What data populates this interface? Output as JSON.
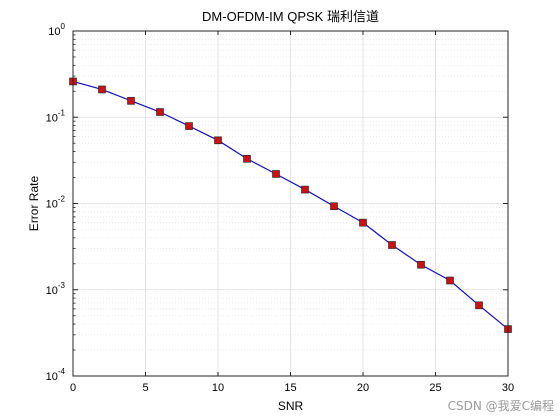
{
  "chart_data": {
    "type": "line",
    "title": "DM-OFDM-IM QPSK 瑞利信道",
    "xlabel": "SNR",
    "ylabel": "Error Rate",
    "xlim": [
      0,
      30
    ],
    "ylim": [
      0.0001,
      1
    ],
    "yscale": "log",
    "grid": true,
    "x_ticks": [
      0,
      5,
      10,
      15,
      20,
      25,
      30
    ],
    "y_ticks": [
      {
        "value": 1,
        "base": "10",
        "exp": "0"
      },
      {
        "value": 0.1,
        "base": "10",
        "exp": "-1"
      },
      {
        "value": 0.01,
        "base": "10",
        "exp": "-2"
      },
      {
        "value": 0.001,
        "base": "10",
        "exp": "-3"
      },
      {
        "value": 0.0001,
        "base": "10",
        "exp": "-4"
      }
    ],
    "series": [
      {
        "line_color": "#1010b8",
        "marker_color": "#cc1111",
        "marker": "square",
        "x": [
          0,
          2,
          4,
          6,
          8,
          10,
          12,
          14,
          16,
          18,
          20,
          22,
          24,
          26,
          28,
          30
        ],
        "y": [
          0.26,
          0.21,
          0.155,
          0.115,
          0.079,
          0.054,
          0.033,
          0.022,
          0.0145,
          0.0093,
          0.006,
          0.0033,
          0.00195,
          0.00128,
          0.00066,
          0.00035
        ]
      }
    ]
  },
  "watermark": "CSDN @我爱C编程"
}
